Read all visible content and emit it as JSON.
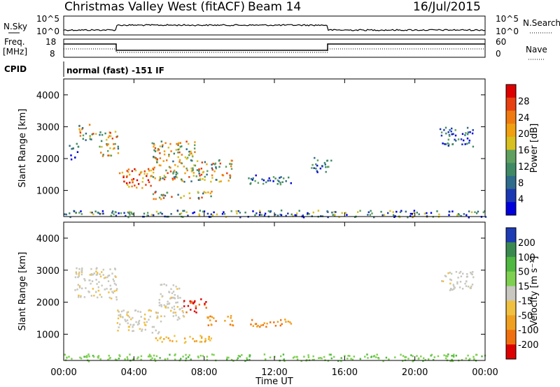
{
  "header": {
    "station": "Christmas Valley West (fitACF)",
    "beam": "Beam 14",
    "date": "16/Jul/2015"
  },
  "panels": {
    "nsky_label": "N.Sky",
    "nsky_ticks": [
      "10^5",
      "10^0"
    ],
    "nsearch_label": "N.Search",
    "nsearch_ticks": [
      "10^5",
      "10^0"
    ],
    "freq_label_1": "Freq.",
    "freq_label_2": "[MHz]",
    "freq_ticks": [
      "18",
      "8"
    ],
    "nave_label": "Nave",
    "nave_ticks": [
      "60",
      "0"
    ],
    "cpid_label": "CPID",
    "cpid_text": "normal (fast) -151 IF"
  },
  "chart_data": [
    {
      "type": "heatmap",
      "name": "power",
      "ylabel": "Slant Range [km]",
      "y_ticks": [
        "4000",
        "3000",
        "2000",
        "1000"
      ],
      "ylim": [
        180,
        4500
      ],
      "colorbar_label": "Power [dB]",
      "colorbar_ticks": [
        "28",
        "24",
        "20",
        "16",
        "12",
        "8",
        "4"
      ],
      "colors": [
        "#0000dd",
        "#1b38b4",
        "#2f6b8b",
        "#3f8a65",
        "#5fa05f",
        "#d8c020",
        "#f0a010",
        "#f07a10",
        "#e84010",
        "#dd0000"
      ],
      "echo_regions": [
        {
          "t0": 0.2,
          "t1": 0.8,
          "r0": 2000,
          "r1": 2500,
          "level": "weak"
        },
        {
          "t0": 0.8,
          "t1": 1.8,
          "r0": 2600,
          "r1": 3100,
          "level": "moderate"
        },
        {
          "t0": 2.0,
          "t1": 3.1,
          "r0": 2100,
          "r1": 2900,
          "level": "moderate"
        },
        {
          "t0": 3.0,
          "t1": 5.0,
          "r0": 1100,
          "r1": 1700,
          "level": "strong"
        },
        {
          "t0": 5.0,
          "t1": 7.5,
          "r0": 1300,
          "r1": 2600,
          "level": "moderate"
        },
        {
          "t0": 7.5,
          "t1": 9.6,
          "r0": 1300,
          "r1": 2000,
          "level": "moderate"
        },
        {
          "t0": 5.0,
          "t1": 8.4,
          "r0": 750,
          "r1": 1000,
          "level": "moderate"
        },
        {
          "t0": 10.4,
          "t1": 13.0,
          "r0": 1200,
          "r1": 1500,
          "level": "weak"
        },
        {
          "t0": 14.0,
          "t1": 15.2,
          "r0": 1600,
          "r1": 2050,
          "level": "weak"
        },
        {
          "t0": 21.4,
          "t1": 23.3,
          "r0": 2400,
          "r1": 3000,
          "level": "weak"
        },
        {
          "t0": 0.0,
          "t1": 24.0,
          "r0": 180,
          "r1": 400,
          "level": "ground"
        }
      ]
    },
    {
      "type": "heatmap",
      "name": "velocity",
      "ylabel": "Slant Range [km]",
      "y_ticks": [
        "4000",
        "3000",
        "2000",
        "1000"
      ],
      "ylim": [
        180,
        4500
      ],
      "xlabel": "Time UT",
      "x_ticks": [
        "00:00",
        "04:00",
        "08:00",
        "12:00",
        "16:00",
        "20:00",
        "00:00"
      ],
      "xlim": [
        0,
        24
      ],
      "colorbar_label": "Velocity [m s⁻¹]",
      "colorbar_ticks": [
        "200",
        "100",
        "50",
        "15",
        "-15",
        "-50",
        "-100",
        "-200"
      ],
      "colors": [
        "#1e3cb4",
        "#3a8a50",
        "#4fb840",
        "#7ed050",
        "#c8c8c0",
        "#f0c040",
        "#f0a020",
        "#f07010",
        "#dd0000"
      ],
      "echo_regions": [
        {
          "t0": 0.6,
          "t1": 3.0,
          "r0": 2100,
          "r1": 3100,
          "vel": "near-zero"
        },
        {
          "t0": 3.0,
          "t1": 5.4,
          "r0": 1050,
          "r1": 1800,
          "vel": "near-zero"
        },
        {
          "t0": 5.4,
          "t1": 6.8,
          "r0": 1400,
          "r1": 2600,
          "vel": "near-zero"
        },
        {
          "t0": 6.8,
          "t1": 8.1,
          "r0": 1700,
          "r1": 2150,
          "vel": "strong-away"
        },
        {
          "t0": 8.1,
          "t1": 9.7,
          "r0": 1300,
          "r1": 1600,
          "vel": "moderate-away"
        },
        {
          "t0": 5.0,
          "t1": 8.4,
          "r0": 750,
          "r1": 1000,
          "vel": "slow-away"
        },
        {
          "t0": 10.5,
          "t1": 13.0,
          "r0": 1250,
          "r1": 1500,
          "vel": "moderate-away"
        },
        {
          "t0": 21.4,
          "t1": 23.3,
          "r0": 2400,
          "r1": 3000,
          "vel": "near-zero"
        },
        {
          "t0": 0.0,
          "t1": 24.0,
          "r0": 180,
          "r1": 400,
          "vel": "ground"
        }
      ]
    }
  ]
}
